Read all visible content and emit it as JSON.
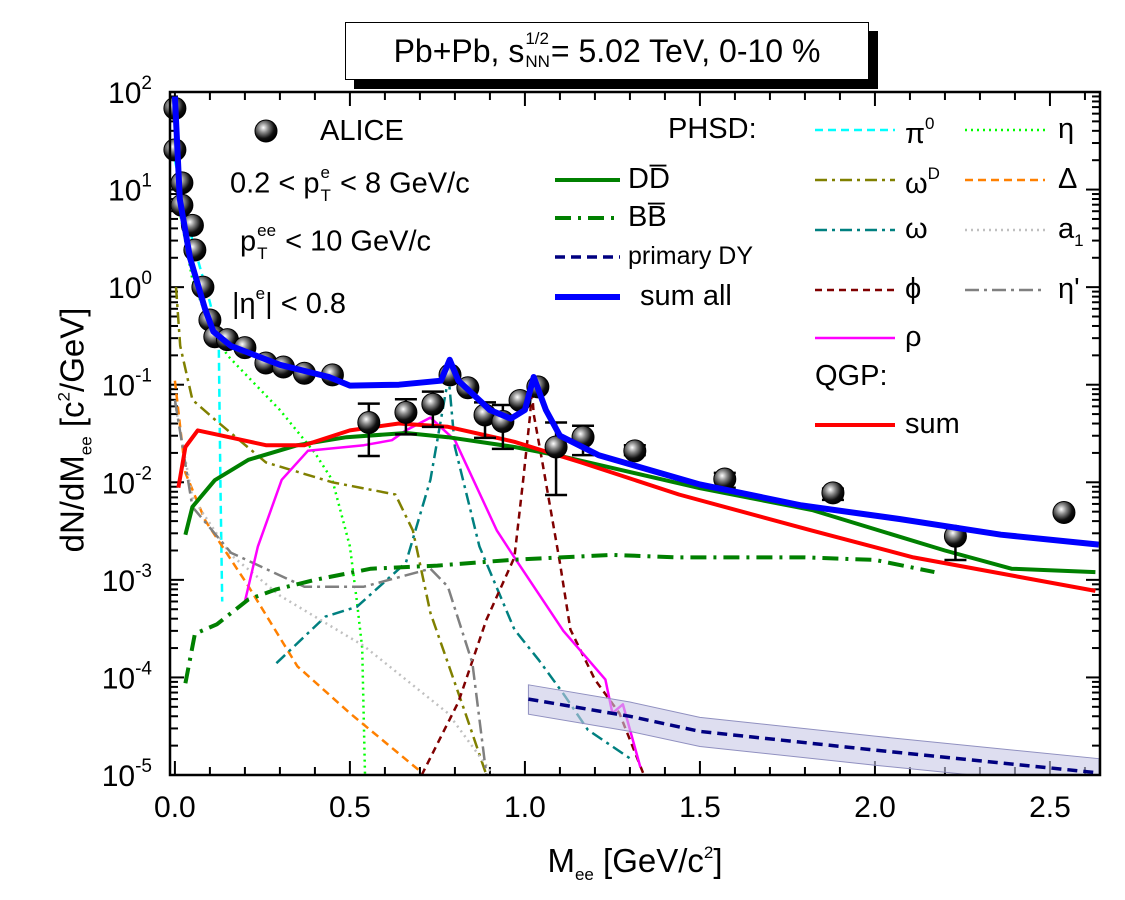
{
  "chart_data": {
    "type": "line",
    "title": {
      "main": "Pb+Pb, s",
      "sup": "1/2",
      "sub": "NN",
      "rest": " = 5.02 TeV, 0-10 %"
    },
    "xlabel": {
      "main": "M",
      "sub": "ee",
      "rest": " [GeV/c",
      "sup": "2",
      "end": "]"
    },
    "ylabel": {
      "main": "dN/dM",
      "sub": "ee",
      "rest": "  [c",
      "sup": "2",
      "end": "/GeV]"
    },
    "xlim": [
      -0.014,
      2.643
    ],
    "ylim": [
      1e-05,
      100
    ],
    "yscale": "log",
    "grid": false,
    "xticks": [
      {
        "v": 0,
        "label": "0.0"
      },
      {
        "v": 0.5,
        "label": "0.5"
      },
      {
        "v": 1.0,
        "label": "1.0"
      },
      {
        "v": 1.5,
        "label": "1.5"
      },
      {
        "v": 2.0,
        "label": "2.0"
      },
      {
        "v": 2.5,
        "label": "2.5"
      }
    ],
    "yticks": [
      {
        "v": 100,
        "base": "10",
        "exp": "2"
      },
      {
        "v": 10,
        "base": "10",
        "exp": "1"
      },
      {
        "v": 1,
        "base": "10",
        "exp": "0"
      },
      {
        "v": 0.1,
        "base": "10",
        "exp": "-1"
      },
      {
        "v": 0.01,
        "base": "10",
        "exp": "-2"
      },
      {
        "v": 0.001,
        "base": "10",
        "exp": "-3"
      },
      {
        "v": 0.0001,
        "base": "10",
        "exp": "-4"
      },
      {
        "v": 1e-05,
        "base": "10",
        "exp": "-5"
      }
    ],
    "annotations": {
      "alice": "ALICE",
      "pt_e": {
        "main": "0.2 < p",
        "sup": "e",
        "sub": "T",
        "rest": " < 8 GeV/c"
      },
      "pt_ee": {
        "main": "p",
        "sup": "ee",
        "sub": "T",
        "rest": " < 10 GeV/c"
      },
      "eta_e": {
        "main": "|η",
        "sup": "e",
        "rest": "| < 0.8"
      },
      "phsd": "PHSD:",
      "qgp": "QGP:"
    },
    "data": {
      "name": "ALICE",
      "x": [
        0.0,
        0.0,
        0.02,
        0.02,
        0.05,
        0.057,
        0.08,
        0.1,
        0.114,
        0.15,
        0.2,
        0.26,
        0.31,
        0.37,
        0.45,
        0.554,
        0.66,
        0.737,
        0.786,
        0.837,
        0.886,
        0.937,
        0.986,
        1.037,
        1.089,
        1.166,
        1.314,
        1.571,
        1.88,
        2.23,
        2.54
      ],
      "y": [
        68,
        25.5,
        11.7,
        6.9,
        4.3,
        2.4,
        1.0,
        0.46,
        0.31,
        0.29,
        0.24,
        0.167,
        0.152,
        0.131,
        0.126,
        0.041,
        0.052,
        0.063,
        0.126,
        0.093,
        0.049,
        0.042,
        0.069,
        0.095,
        0.023,
        0.029,
        0.021,
        0.0108,
        0.0078,
        0.0028,
        0.0049
      ],
      "err": [
        null,
        null,
        null,
        null,
        null,
        null,
        null,
        null,
        null,
        null,
        null,
        null,
        null,
        null,
        null,
        [
          0.0186,
          0.064
        ],
        [
          0.031,
          0.071
        ],
        [
          0.037,
          0.085
        ],
        null,
        null,
        [
          0.0285,
          0.066
        ],
        [
          0.022,
          0.062
        ],
        null,
        null,
        [
          0.0074,
          0.041
        ],
        [
          0.019,
          0.038
        ],
        [
          0.019,
          0.024
        ],
        [
          0.0088,
          0.0125
        ],
        [
          0.0066,
          0.0086
        ],
        [
          0.0016,
          0.0034
        ],
        null
      ]
    },
    "series": [
      {
        "key": "pi0",
        "name": {
          "main": "π",
          "sup": "0"
        },
        "color": "#00ffff",
        "x": [
          0.0,
          0.05,
          0.1,
          0.125,
          0.13,
          0.135
        ],
        "y": [
          20,
          3,
          0.7,
          0.3,
          0.01,
          0.0006
        ]
      },
      {
        "key": "eta",
        "name": {
          "main": "η"
        },
        "color": "#00ff00",
        "x": [
          0.01,
          0.05,
          0.1,
          0.15,
          0.2,
          0.3,
          0.4,
          0.45,
          0.5,
          0.52,
          0.535,
          0.543
        ],
        "y": [
          7,
          1.2,
          0.4,
          0.2,
          0.13,
          0.055,
          0.02,
          0.0105,
          0.0022,
          0.0006,
          0.0002,
          1e-05
        ]
      },
      {
        "key": "omegaD",
        "name": {
          "main": "ω",
          "sup": "D"
        },
        "color": "#808000",
        "x": [
          0.003,
          0.015,
          0.05,
          0.114,
          0.26,
          0.45,
          0.63,
          0.68,
          0.73,
          0.83,
          0.89
        ],
        "y": [
          1.0,
          0.25,
          0.07,
          0.044,
          0.016,
          0.01,
          0.0075,
          0.0032,
          0.00046,
          4.3e-05,
          1e-05
        ]
      },
      {
        "key": "delta",
        "name": {
          "main": "Δ"
        },
        "color": "#ff8000",
        "x": [
          0.0,
          0.03,
          0.086,
          0.21,
          0.35,
          0.5,
          0.7
        ],
        "y": [
          0.11,
          0.0125,
          0.0041,
          0.00086,
          0.00013,
          4.3e-05,
          1.1e-05
        ]
      },
      {
        "key": "omega",
        "name": {
          "main": "ω"
        },
        "color": "#008080",
        "x": [
          0.29,
          0.43,
          0.52,
          0.66,
          0.73,
          0.77,
          0.782,
          0.8,
          0.87,
          0.97,
          1.04,
          1.11,
          1.18,
          1.31
        ],
        "y": [
          0.00014,
          0.00042,
          0.00053,
          0.0015,
          0.0106,
          0.07,
          0.12,
          0.023,
          0.0022,
          0.00031,
          0.00015,
          6.8e-05,
          2.9e-05,
          1.4e-05
        ]
      },
      {
        "key": "a1",
        "name": {
          "main": "a",
          "sub": "1"
        },
        "color": "#c0c0c0",
        "x": [
          0.0,
          0.05,
          0.16,
          0.3,
          0.54,
          0.78,
          0.91
        ],
        "y": [
          0.065,
          0.007,
          0.0018,
          0.00069,
          0.00021,
          4.3e-05,
          1e-05
        ]
      },
      {
        "key": "phi",
        "name": {
          "main": "ϕ"
        },
        "color": "#800000",
        "x": [
          0.705,
          0.81,
          0.89,
          0.97,
          0.995,
          1.015,
          1.02,
          1.025,
          1.05,
          1.1,
          1.13,
          1.2,
          1.27,
          1.34
        ],
        "y": [
          1e-05,
          5.6e-05,
          0.00039,
          0.0017,
          0.0106,
          0.05,
          0.09,
          0.05,
          0.016,
          0.0015,
          0.00031,
          9.5e-05,
          4.3e-05,
          1e-05
        ]
      },
      {
        "key": "etaprime",
        "name": {
          "main": "η'"
        },
        "color": "#808080",
        "x": [
          0.0,
          0.05,
          0.16,
          0.37,
          0.54,
          0.73,
          0.78,
          0.85,
          0.89
        ],
        "y": [
          0.07,
          0.0056,
          0.0019,
          0.00085,
          0.00085,
          0.0013,
          0.00085,
          0.00014,
          1e-05
        ]
      },
      {
        "key": "rho",
        "name": {
          "main": "ρ"
        },
        "color": "#ff00ff",
        "x": [
          0.2,
          0.237,
          0.305,
          0.38,
          0.54,
          0.62,
          0.66,
          0.73,
          0.8,
          0.92,
          0.97,
          1.11,
          1.23,
          1.25,
          1.28,
          1.33
        ],
        "y": [
          0.0006,
          0.0022,
          0.0106,
          0.021,
          0.024,
          0.027,
          0.034,
          0.046,
          0.027,
          0.0032,
          0.0017,
          0.0003,
          9.5e-05,
          4.3e-05,
          5.3e-05,
          1.2e-05
        ]
      },
      {
        "key": "dy",
        "name": {
          "main": "primary DY"
        },
        "color": "#000080",
        "x": [
          1.01,
          1.3,
          1.5,
          2.0,
          2.64
        ],
        "y": [
          6e-05,
          4e-05,
          2.8e-05,
          1.8e-05,
          1.05e-05
        ],
        "band_low": [
          4.2e-05,
          2.8e-05,
          1.96e-05,
          1.26e-05,
          7.4e-06
        ],
        "band_high": [
          8.4e-05,
          5.6e-05,
          3.9e-05,
          2.5e-05,
          1.47e-05
        ],
        "band_color": "#c8c8e6"
      },
      {
        "key": "bb",
        "name": {
          "main": "BB̅"
        },
        "color": "#008000",
        "x": [
          0.03,
          0.057,
          0.12,
          0.21,
          0.29,
          0.4,
          0.56,
          0.75,
          0.96,
          1.25,
          1.44,
          1.8,
          2.0,
          2.17
        ],
        "y": [
          8.7e-05,
          0.00028,
          0.00035,
          0.00063,
          0.0008,
          0.001,
          0.0013,
          0.0014,
          0.0016,
          0.0018,
          0.0017,
          0.0017,
          0.0016,
          0.0012
        ]
      },
      {
        "key": "dd",
        "name": {
          "main": "DD̅"
        },
        "color": "#008000",
        "x": [
          0.03,
          0.05,
          0.114,
          0.21,
          0.35,
          0.49,
          0.66,
          0.78,
          0.97,
          1.09,
          1.5,
          1.82,
          2.2,
          2.39,
          2.63
        ],
        "y": [
          0.0029,
          0.0056,
          0.0105,
          0.017,
          0.024,
          0.029,
          0.032,
          0.029,
          0.023,
          0.019,
          0.0087,
          0.0052,
          0.002,
          0.0013,
          0.0012
        ]
      },
      {
        "key": "qgp",
        "name": {
          "main": "sum"
        },
        "color": "#ff0000",
        "x": [
          0.01,
          0.03,
          0.065,
          0.135,
          0.26,
          0.37,
          0.5,
          0.64,
          0.78,
          0.97,
          1.16,
          1.44,
          1.82,
          2.11,
          2.63
        ],
        "y": [
          0.0088,
          0.023,
          0.034,
          0.03,
          0.024,
          0.024,
          0.034,
          0.04,
          0.037,
          0.026,
          0.016,
          0.0075,
          0.0032,
          0.0017,
          0.00077
        ]
      },
      {
        "key": "sumall",
        "name": {
          "main": "sum all"
        },
        "color": "#0000ff",
        "x": [
          0.0,
          0.014,
          0.043,
          0.086,
          0.11,
          0.16,
          0.3,
          0.44,
          0.5,
          0.64,
          0.76,
          0.785,
          0.81,
          0.9,
          0.96,
          1.0,
          1.025,
          1.06,
          1.1,
          1.21,
          1.5,
          1.79,
          2.07,
          2.36,
          2.64
        ],
        "y": [
          90,
          8,
          2,
          0.6,
          0.35,
          0.25,
          0.16,
          0.12,
          0.098,
          0.1,
          0.11,
          0.18,
          0.11,
          0.055,
          0.045,
          0.055,
          0.12,
          0.055,
          0.03,
          0.019,
          0.0095,
          0.0058,
          0.0042,
          0.0029,
          0.0023
        ]
      }
    ]
  }
}
